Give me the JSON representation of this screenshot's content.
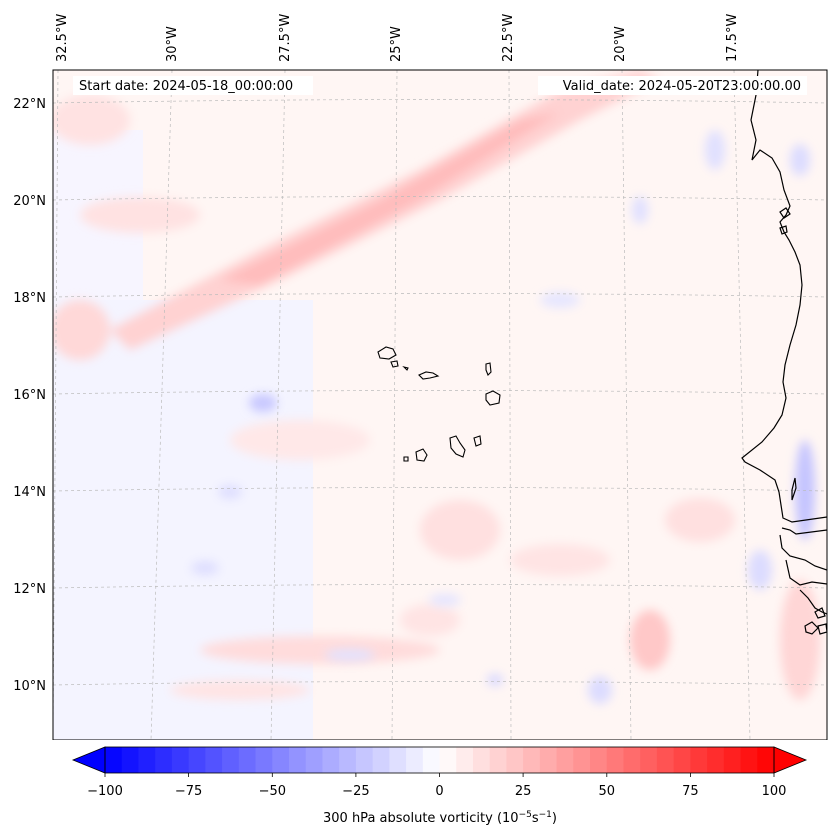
{
  "map": {
    "start_date_label": "Start date: 2024-05-18_00:00:00",
    "valid_date_label": "Valid_date: 2024-05-20T23:00:00.00",
    "lon_labels": [
      "32.5°W",
      "30°W",
      "27.5°W",
      "25°W",
      "22.5°W",
      "20°W",
      "17.5°W"
    ],
    "lat_labels": [
      "22°N",
      "20°N",
      "18°N",
      "16°N",
      "14°N",
      "12°N",
      "10°N"
    ],
    "colors": {
      "background_tint": "#fff6f4",
      "positive": "#ff0000",
      "negative": "#0000ff",
      "coastline": "#000000",
      "gridline": "#bbbbbb"
    }
  },
  "colorbar": {
    "label": "300 hPa absolute vorticity (10",
    "label_exp1": "−5",
    "label_mid": "s",
    "label_exp2": "−1",
    "label_end": ")",
    "min": -100,
    "max": 100,
    "step": 5,
    "tick_labels": [
      "−100",
      "−75",
      "−50",
      "−25",
      "0",
      "25",
      "50",
      "75",
      "100"
    ],
    "tick_values": [
      -100,
      -75,
      -50,
      -25,
      0,
      25,
      50,
      75,
      100
    ],
    "colormap": "bwr",
    "extend": "both"
  }
}
